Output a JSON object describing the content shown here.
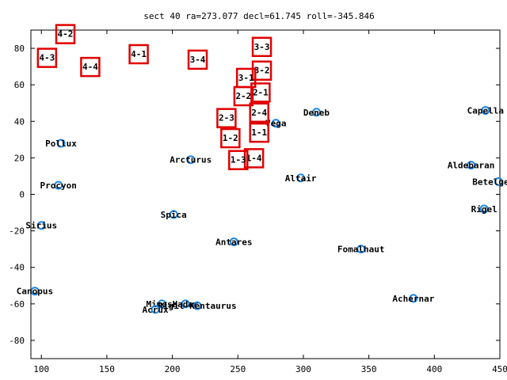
{
  "chart_data": {
    "type": "scatter",
    "title": "sect 40 ra=273.077 decl=61.745 roll=-345.846",
    "xlim": [
      92,
      450
    ],
    "ylim": [
      -90,
      90
    ],
    "xticks": [
      100,
      150,
      200,
      250,
      300,
      350,
      400,
      450
    ],
    "yticks": [
      -80,
      -60,
      -40,
      -20,
      0,
      20,
      40,
      60,
      80
    ],
    "grid": false,
    "star_color": "#1e88e5",
    "sector_color": "#e00000",
    "stars": [
      {
        "name": "Deneb",
        "x": 310,
        "y": 45
      },
      {
        "name": "Capella",
        "x": 439,
        "y": 46
      },
      {
        "name": "Vega",
        "x": 279,
        "y": 39
      },
      {
        "name": "Pollux",
        "x": 115,
        "y": 28
      },
      {
        "name": "Arcturus",
        "x": 214,
        "y": 19
      },
      {
        "name": "Aldebaran",
        "x": 428,
        "y": 16
      },
      {
        "name": "Altair",
        "x": 298,
        "y": 9
      },
      {
        "name": "Betelgeuse",
        "x": 449,
        "y": 7
      },
      {
        "name": "Procyon",
        "x": 113,
        "y": 5
      },
      {
        "name": "Rigel",
        "x": 438,
        "y": -8
      },
      {
        "name": "Spica",
        "x": 201,
        "y": -11
      },
      {
        "name": "Sirius",
        "x": 100,
        "y": -17
      },
      {
        "name": "Antares",
        "x": 247,
        "y": -26
      },
      {
        "name": "Fomalhaut",
        "x": 344,
        "y": -30
      },
      {
        "name": "Canopus",
        "x": 95,
        "y": -53
      },
      {
        "name": "Achernar",
        "x": 384,
        "y": -57
      },
      {
        "name": "Mimosa",
        "x": 192,
        "y": -60
      },
      {
        "name": "Hadar",
        "x": 210,
        "y": -60
      },
      {
        "name": "Rigil Kentaurus",
        "x": 219,
        "y": -61
      },
      {
        "name": "Acrux",
        "x": 187,
        "y": -63
      }
    ],
    "sectors": [
      {
        "label": "4-2",
        "x": 118,
        "y": 88
      },
      {
        "label": "4-3",
        "x": 104,
        "y": 75
      },
      {
        "label": "4-4",
        "x": 137,
        "y": 70
      },
      {
        "label": "4-1",
        "x": 174,
        "y": 77
      },
      {
        "label": "3-4",
        "x": 219,
        "y": 74
      },
      {
        "label": "3-3",
        "x": 268,
        "y": 81
      },
      {
        "label": "3-2",
        "x": 268,
        "y": 68
      },
      {
        "label": "3-1",
        "x": 256,
        "y": 64
      },
      {
        "label": "2-1",
        "x": 267,
        "y": 56
      },
      {
        "label": "2-2",
        "x": 254,
        "y": 54
      },
      {
        "label": "2-4",
        "x": 266,
        "y": 45
      },
      {
        "label": "2-3",
        "x": 241,
        "y": 42
      },
      {
        "label": "1-1",
        "x": 266,
        "y": 34
      },
      {
        "label": "1-2",
        "x": 244,
        "y": 31
      },
      {
        "label": "1-4",
        "x": 262,
        "y": 20
      },
      {
        "label": "1-3",
        "x": 250,
        "y": 19
      }
    ]
  }
}
